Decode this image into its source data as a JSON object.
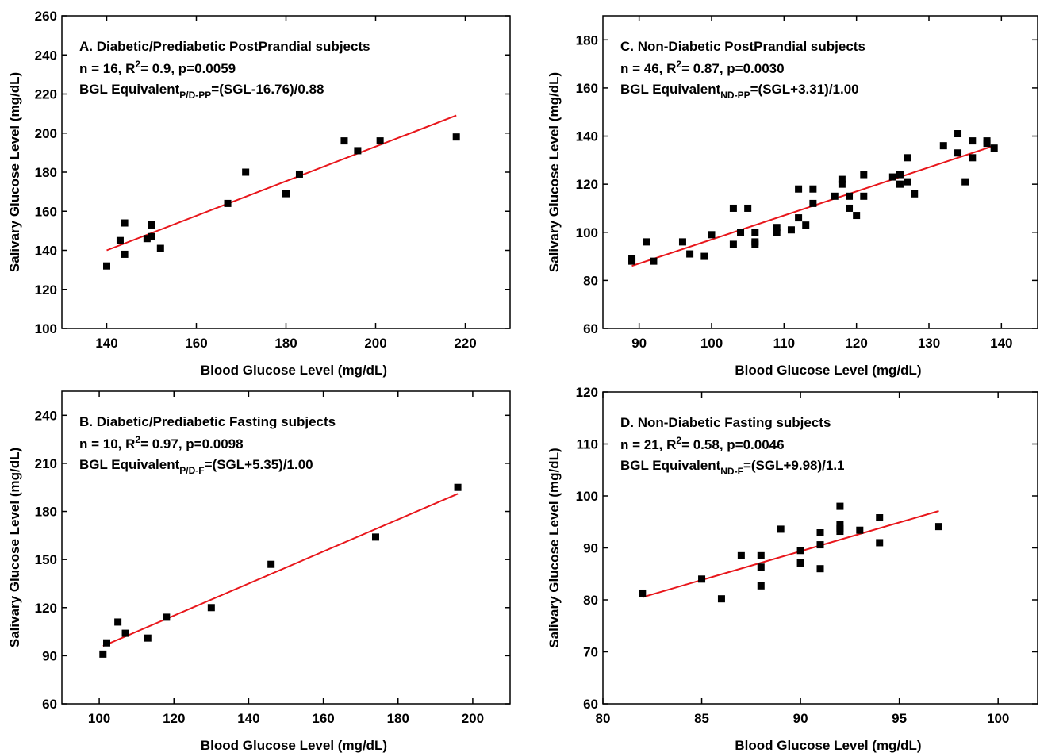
{
  "chart_data": [
    {
      "type": "scatter",
      "title": "A. Diabetic/Prediabetic PostPrandial subjects",
      "stats": [
        "n = 16, R",
        "2",
        "= 0.9, p=0.0059"
      ],
      "equation": [
        "BGL Equivalent",
        "P/D-PP",
        "=(SGL-16.76)/0.88"
      ],
      "x_label": "Blood Glucose Level (mg/dL)",
      "y_label": "Salivary Glucose Level (mg/dL)",
      "x": [
        140,
        143,
        144,
        144,
        149,
        150,
        150,
        152,
        167,
        171,
        180,
        183,
        193,
        196,
        201,
        218
      ],
      "values": [
        132,
        145,
        154,
        138,
        146,
        147,
        153,
        141,
        164,
        180,
        169,
        179,
        196,
        191,
        196,
        198
      ],
      "color": "#000000",
      "fit": {
        "x": [
          140,
          218
        ],
        "values": [
          140,
          209
        ],
        "color": "#e8161b"
      },
      "xlim": [
        130,
        230
      ],
      "ylim": [
        100,
        260
      ],
      "xticks": [
        140,
        160,
        180,
        200,
        220
      ],
      "yticks": [
        100,
        120,
        140,
        160,
        180,
        200,
        220,
        240,
        260
      ]
    },
    {
      "type": "scatter",
      "title": "C. Non-Diabetic PostPrandial subjects",
      "stats": [
        "n = 46, R",
        "2",
        "= 0.87, p=0.0030"
      ],
      "equation": [
        "BGL Equivalent",
        "ND-PP",
        "=(SGL+3.31)/1.00"
      ],
      "x_label": "Blood Glucose Level (mg/dL)",
      "y_label": "Salivary Glucose Level (mg/dL)",
      "x": [
        89,
        89,
        91,
        92,
        96,
        97,
        99,
        100,
        103,
        103,
        104,
        105,
        106,
        106,
        106,
        109,
        109,
        111,
        112,
        112,
        113,
        114,
        114,
        117,
        118,
        118,
        119,
        119,
        120,
        121,
        121,
        125,
        126,
        126,
        127,
        127,
        128,
        132,
        134,
        134,
        135,
        136,
        136,
        138,
        138,
        139
      ],
      "values": [
        88,
        89,
        96,
        88,
        96,
        91,
        90,
        99,
        95,
        110,
        100,
        110,
        95,
        96,
        100,
        100,
        102,
        101,
        106,
        118,
        103,
        112,
        118,
        115,
        120,
        122,
        110,
        115,
        107,
        115,
        124,
        123,
        120,
        124,
        121,
        131,
        116,
        136,
        133,
        141,
        121,
        131,
        138,
        137,
        138,
        135
      ],
      "color": "#000000",
      "fit": {
        "x": [
          89,
          139
        ],
        "values": [
          86,
          136
        ],
        "color": "#e8161b"
      },
      "xlim": [
        85,
        145
      ],
      "ylim": [
        60,
        190
      ],
      "xticks": [
        90,
        100,
        110,
        120,
        130,
        140
      ],
      "yticks": [
        60,
        80,
        100,
        120,
        140,
        160,
        180
      ]
    },
    {
      "type": "scatter",
      "title": "B. Diabetic/Prediabetic Fasting subjects",
      "stats": [
        "n = 10, R",
        "2",
        "= 0.97, p=0.0098"
      ],
      "equation": [
        "BGL Equivalent",
        "P/D-F",
        "=(SGL+5.35)/1.00"
      ],
      "x_label": "Blood Glucose Level (mg/dL)",
      "y_label": "Salivary Glucose Level (mg/dL)",
      "x": [
        101,
        102,
        105,
        107,
        113,
        118,
        130,
        146,
        174,
        196
      ],
      "values": [
        91,
        98,
        111,
        104,
        101,
        114,
        120,
        147,
        164,
        195
      ],
      "color": "#000000",
      "fit": {
        "x": [
          101,
          196
        ],
        "values": [
          96,
          191
        ],
        "color": "#e8161b"
      },
      "xlim": [
        90,
        210
      ],
      "ylim": [
        60,
        255
      ],
      "xticks": [
        100,
        120,
        140,
        160,
        180,
        200
      ],
      "yticks": [
        60,
        90,
        120,
        150,
        180,
        210,
        240
      ]
    },
    {
      "type": "scatter",
      "title": "D. Non-Diabetic Fasting subjects",
      "stats": [
        "n = 21, R",
        "2",
        "= 0.58, p=0.0046"
      ],
      "equation": [
        "BGL Equivalent",
        "ND-F",
        "=(SGL+9.98)/1.1"
      ],
      "x_label": "Blood Glucose Level (mg/dL)",
      "y_label": "Salivary Glucose Level (mg/dL)",
      "x": [
        82,
        85,
        86,
        87,
        88,
        88,
        88,
        89,
        90,
        90,
        91,
        91,
        91,
        92,
        92,
        92,
        92,
        93,
        94,
        94,
        97
      ],
      "values": [
        81.3,
        84,
        80.2,
        88.5,
        88.5,
        86.3,
        82.7,
        93.6,
        89.5,
        87.1,
        92.9,
        90.6,
        86,
        98,
        94.5,
        93.7,
        93.2,
        93.4,
        95.8,
        91,
        94.1
      ],
      "color": "#000000",
      "fit": {
        "x": [
          82,
          97
        ],
        "values": [
          80.5,
          97.1
        ],
        "color": "#e8161b"
      },
      "xlim": [
        80,
        102
      ],
      "ylim": [
        60,
        120
      ],
      "xticks": [
        80,
        85,
        90,
        95,
        100
      ],
      "yticks": [
        60,
        70,
        80,
        90,
        100,
        110,
        120
      ]
    }
  ]
}
